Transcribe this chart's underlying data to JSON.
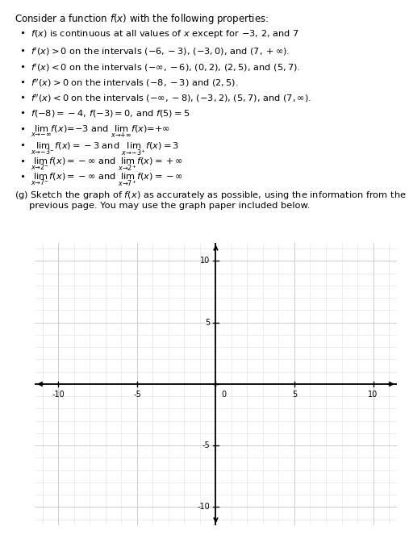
{
  "title_text": "Consider a function $f(x)$ with the following properties:",
  "bullets": [
    "$f(x)$ is continuous at all values of $x$ except for $-3$, 2, and 7",
    "$f'(x) > 0$ on the intervals $(-6,-3)$, $(-3,0)$, and $(7,+\\infty)$.",
    "$f'(x) < 0$ on the intervals $(-\\infty,-6)$, $(0,2)$, $(2,5)$, and $(5,7)$.",
    "$f''(x) > 0$ on the intervals $(-8,-3)$ and $(2,5)$.",
    "$f''(x) < 0$ on the intervals $(-\\infty,-8)$, $(-3,2)$, $(5,7)$, and $(7,\\infty)$.",
    "$f(-8) = -4$, $f(-3) = 0$, and $f(5) = 5$",
    "$\\lim_{x\\to-\\infty}f(x) = -3$ and $\\lim_{x\\to+\\infty}f(x) = +\\infty$",
    "$\\lim_{x\\to-3^-}f(x) = -3$ and $\\lim_{x\\to-3^+}f(x) = 3$",
    "$\\lim_{x\\to2^-}f(x) = -\\infty$ and $\\lim_{x\\to2^+}f(x) = +\\infty$",
    "$\\lim_{x\\to7^-}f(x) = -\\infty$ and $\\lim_{x\\to7^+}f(x) = -\\infty$"
  ],
  "part_g_line1": "(g) Sketch the graph of $f(x)$ as accurately as possible, using the information from the",
  "part_g_line2": "     previous page. You may use the graph paper included below.",
  "graph_xlim": [
    -11.5,
    11.5
  ],
  "graph_ylim": [
    -11.5,
    11.5
  ],
  "grid_major_color": "#c8c8c8",
  "grid_minor_color": "#e0e0e0",
  "axis_color": "#000000",
  "tick_values": [
    -10,
    -5,
    0,
    5,
    10
  ],
  "background_color": "#ffffff",
  "text_color": "#000000",
  "bullet_fontsize": 8.2,
  "title_fontsize": 8.5,
  "part_g_fontsize": 8.2,
  "tick_fontsize": 7.0
}
